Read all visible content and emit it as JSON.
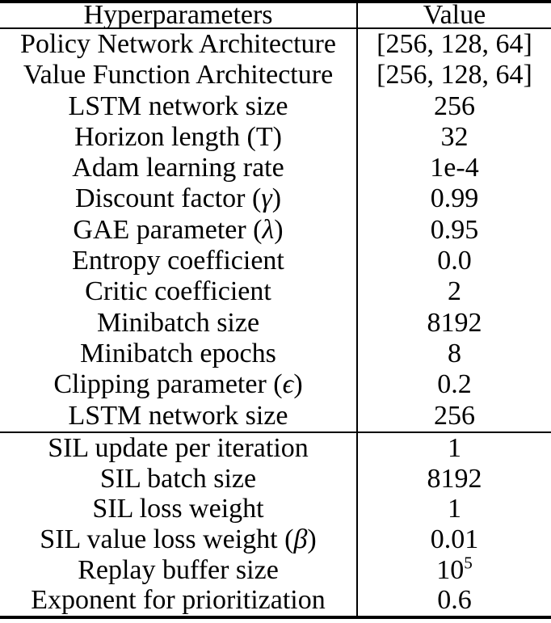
{
  "header": {
    "param": "Hyperparameters",
    "value": "Value"
  },
  "sections": [
    {
      "name": "ppo",
      "rows": [
        {
          "param": "Policy Network Architecture",
          "value": "[256, 128, 64]"
        },
        {
          "param": "Value Function Architecture",
          "value": "[256, 128, 64]"
        },
        {
          "param": "LSTM network size",
          "value": "256"
        },
        {
          "param": "Horizon length (T)",
          "value": "32"
        },
        {
          "param": "Adam learning rate",
          "value": "1e-4"
        },
        {
          "param": "Discount factor (",
          "math": "γ",
          "suffix": ")",
          "value": "0.99"
        },
        {
          "param": "GAE parameter (",
          "math": "λ",
          "suffix": ")",
          "value": "0.95"
        },
        {
          "param": "Entropy coefficient",
          "value": "0.0"
        },
        {
          "param": "Critic coefficient",
          "value": "2"
        },
        {
          "param": "Minibatch size",
          "value": "8192"
        },
        {
          "param": "Minibatch epochs",
          "value": "8"
        },
        {
          "param": "Clipping parameter (",
          "math": "ϵ",
          "suffix": ")",
          "value": "0.2"
        },
        {
          "param": "LSTM network size",
          "value": "256"
        }
      ]
    },
    {
      "name": "sil",
      "rows": [
        {
          "param": "SIL update per iteration",
          "value": "1"
        },
        {
          "param": "SIL batch size",
          "value": "8192"
        },
        {
          "param": "SIL loss weight",
          "value": "1"
        },
        {
          "param": "SIL value loss weight (",
          "math": "β",
          "suffix": ")",
          "value": "0.01"
        },
        {
          "param": "Replay buffer size",
          "value": "10",
          "value_sup": "5"
        },
        {
          "param": "Exponent for prioritization",
          "value": "0.6"
        }
      ]
    }
  ],
  "colors": {
    "text": "#000000",
    "background": "#ffffff",
    "rule": "#000000"
  }
}
